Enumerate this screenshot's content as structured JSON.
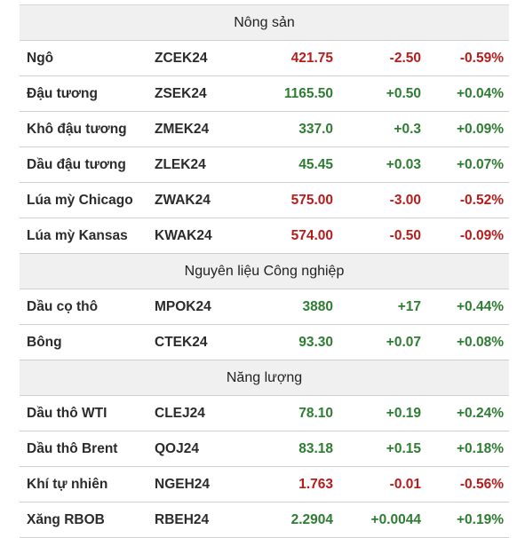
{
  "colors": {
    "up": "#2e7d32",
    "down": "#b71c1c",
    "section_bg": "#f0f0f0"
  },
  "sections": [
    {
      "title": "Nông sản",
      "rows": [
        {
          "name": "Ngô",
          "symbol": "ZCEK24",
          "price": "421.75",
          "change": "-2.50",
          "pct": "-0.59%",
          "dir": "down"
        },
        {
          "name": "Đậu tương",
          "symbol": "ZSEK24",
          "price": "1165.50",
          "change": "+0.50",
          "pct": "+0.04%",
          "dir": "up"
        },
        {
          "name": "Khô đậu tương",
          "symbol": "ZMEK24",
          "price": "337.0",
          "change": "+0.3",
          "pct": "+0.09%",
          "dir": "up"
        },
        {
          "name": "Dầu đậu tương",
          "symbol": "ZLEK24",
          "price": "45.45",
          "change": "+0.03",
          "pct": "+0.07%",
          "dir": "up"
        },
        {
          "name": "Lúa mỳ Chicago",
          "symbol": "ZWAK24",
          "price": "575.00",
          "change": "-3.00",
          "pct": "-0.52%",
          "dir": "down"
        },
        {
          "name": "Lúa mỳ Kansas",
          "symbol": "KWAK24",
          "price": "574.00",
          "change": "-0.50",
          "pct": "-0.09%",
          "dir": "down"
        }
      ]
    },
    {
      "title": "Nguyên liệu Công nghiệp",
      "rows": [
        {
          "name": "Dầu cọ thô",
          "symbol": "MPOK24",
          "price": "3880",
          "change": "+17",
          "pct": "+0.44%",
          "dir": "up"
        },
        {
          "name": "Bông",
          "symbol": "CTEK24",
          "price": "93.30",
          "change": "+0.07",
          "pct": "+0.08%",
          "dir": "up"
        }
      ]
    },
    {
      "title": "Năng lượng",
      "rows": [
        {
          "name": "Dầu thô WTI",
          "symbol": "CLEJ24",
          "price": "78.10",
          "change": "+0.19",
          "pct": "+0.24%",
          "dir": "up"
        },
        {
          "name": "Dầu thô Brent",
          "symbol": "QOJ24",
          "price": "83.18",
          "change": "+0.15",
          "pct": "+0.18%",
          "dir": "up"
        },
        {
          "name": "Khí tự nhiên",
          "symbol": "NGEH24",
          "price": "1.763",
          "change": "-0.01",
          "pct": "-0.56%",
          "dir": "down"
        },
        {
          "name": "Xăng RBOB",
          "symbol": "RBEH24",
          "price": "2.2904",
          "change": "+0.0044",
          "pct": "+0.19%",
          "dir": "up"
        }
      ]
    }
  ]
}
